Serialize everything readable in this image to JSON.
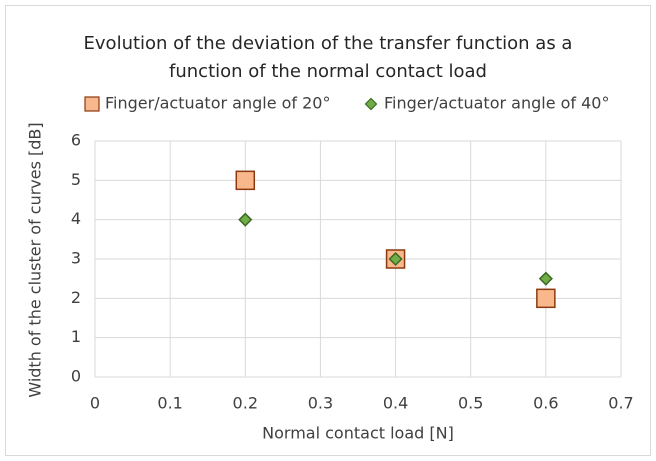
{
  "chart_data": {
    "type": "scatter",
    "title": [
      "Evolution of the deviation of the transfer function as a",
      "function of the normal contact load"
    ],
    "x_label": "Normal contact load [N]",
    "y_label": "Width of the cluster of curves [dB]",
    "xlim": [
      0,
      0.7
    ],
    "xticks": [
      0,
      0.1,
      0.2,
      0.3,
      0.4,
      0.5,
      0.6,
      0.7
    ],
    "ylim": [
      0,
      6
    ],
    "yticks": [
      0,
      1,
      2,
      3,
      4,
      5,
      6
    ],
    "grid": true,
    "legend": "top",
    "series": [
      {
        "name": "Finger/actuator angle of 20°",
        "color": "#f8b88b",
        "edge": "#8b3a0f",
        "marker": "square",
        "x": [
          0.2,
          0.4,
          0.6
        ],
        "values": [
          5,
          3,
          2
        ]
      },
      {
        "name": "Finger/actuator angle of 40°",
        "color": "#70ad47",
        "edge": "#3b6a22",
        "marker": "diamond",
        "x": [
          0.2,
          0.4,
          0.6
        ],
        "values": [
          4,
          3,
          2.5
        ]
      }
    ]
  }
}
